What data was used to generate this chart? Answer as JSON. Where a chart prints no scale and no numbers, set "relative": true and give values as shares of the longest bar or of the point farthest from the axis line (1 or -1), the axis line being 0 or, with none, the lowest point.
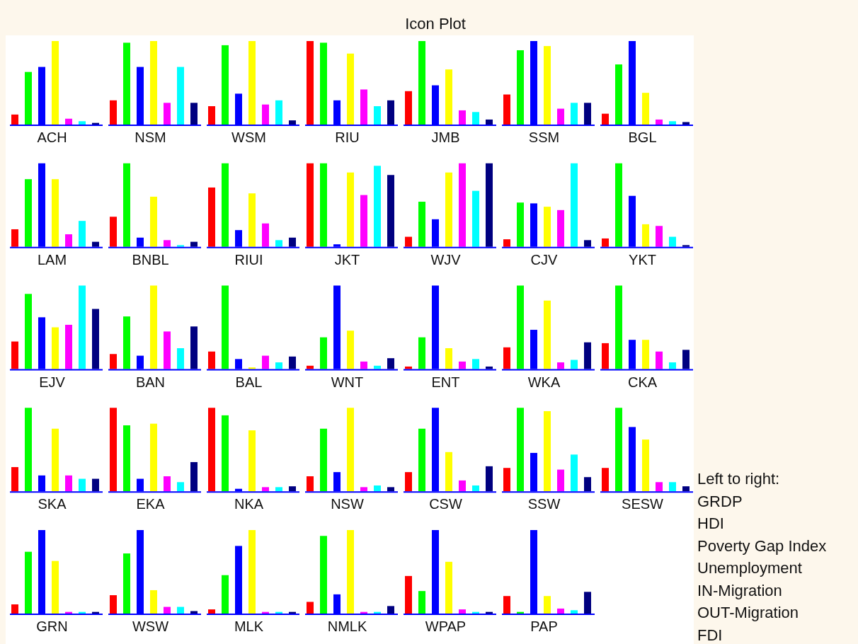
{
  "chart_data": [
    {
      "type": "other",
      "title": "Icon Plot"
    },
    {
      "type": "bar",
      "relative": true,
      "xlabel": "ACH",
      "categories": [
        null,
        null,
        null,
        null,
        null,
        null,
        null
      ],
      "values": [
        0.12,
        0.63,
        0.69,
        1,
        0.07,
        0.04,
        0.02
      ],
      "colors": [
        "#ff0000",
        "#00ff00",
        "#0000ff",
        "#ffff00",
        "#ff00ff",
        "#00ffff",
        "#000080"
      ]
    },
    {
      "type": "bar",
      "relative": true,
      "xlabel": "NSM",
      "categories": [
        null,
        null,
        null,
        null,
        null,
        null,
        null
      ],
      "values": [
        0.29,
        0.98,
        0.69,
        1,
        0.26,
        0.69,
        0.26
      ],
      "colors": [
        "#ff0000",
        "#00ff00",
        "#0000ff",
        "#ffff00",
        "#ff00ff",
        "#00ffff",
        "#000080"
      ]
    },
    {
      "type": "bar",
      "relative": true,
      "xlabel": "WSM",
      "categories": [
        null,
        null,
        null,
        null,
        null,
        null,
        null
      ],
      "values": [
        0.22,
        0.95,
        0.37,
        1,
        0.24,
        0.29,
        0.05
      ],
      "colors": [
        "#ff0000",
        "#00ff00",
        "#0000ff",
        "#ffff00",
        "#ff00ff",
        "#00ffff",
        "#000080"
      ]
    },
    {
      "type": "bar",
      "relative": true,
      "xlabel": "RIU",
      "categories": [
        null,
        null,
        null,
        null,
        null,
        null,
        null
      ],
      "values": [
        1,
        0.98,
        0.29,
        0.85,
        0.42,
        0.22,
        0.29
      ],
      "colors": [
        "#ff0000",
        "#00ff00",
        "#0000ff",
        "#ffff00",
        "#ff00ff",
        "#00ffff",
        "#000080"
      ]
    },
    {
      "type": "bar",
      "relative": true,
      "xlabel": "JMB",
      "categories": [
        null,
        null,
        null,
        null,
        null,
        null,
        null
      ],
      "values": [
        0.4,
        1,
        0.47,
        0.66,
        0.17,
        0.15,
        0.06
      ],
      "colors": [
        "#ff0000",
        "#00ff00",
        "#0000ff",
        "#ffff00",
        "#ff00ff",
        "#00ffff",
        "#000080"
      ]
    },
    {
      "type": "bar",
      "relative": true,
      "xlabel": "SSM",
      "categories": [
        null,
        null,
        null,
        null,
        null,
        null,
        null
      ],
      "values": [
        0.36,
        0.89,
        1,
        0.94,
        0.19,
        0.26,
        0.26
      ],
      "colors": [
        "#ff0000",
        "#00ff00",
        "#0000ff",
        "#ffff00",
        "#ff00ff",
        "#00ffff",
        "#000080"
      ]
    },
    {
      "type": "bar",
      "relative": true,
      "xlabel": "BGL",
      "categories": [
        null,
        null,
        null,
        null,
        null,
        null,
        null
      ],
      "values": [
        0.13,
        0.72,
        1,
        0.38,
        0.06,
        0.04,
        0.03
      ],
      "colors": [
        "#ff0000",
        "#00ff00",
        "#0000ff",
        "#ffff00",
        "#ff00ff",
        "#00ffff",
        "#000080"
      ]
    },
    {
      "type": "bar",
      "relative": true,
      "xlabel": "LAM",
      "categories": [
        null,
        null,
        null,
        null,
        null,
        null,
        null
      ],
      "values": [
        0.21,
        0.81,
        1,
        0.81,
        0.15,
        0.31,
        0.06
      ],
      "colors": [
        "#ff0000",
        "#00ff00",
        "#0000ff",
        "#ffff00",
        "#ff00ff",
        "#00ffff",
        "#000080"
      ]
    },
    {
      "type": "bar",
      "relative": true,
      "xlabel": "BNBL",
      "categories": [
        null,
        null,
        null,
        null,
        null,
        null,
        null
      ],
      "values": [
        0.36,
        1,
        0.11,
        0.6,
        0.08,
        0.02,
        0.06
      ],
      "colors": [
        "#ff0000",
        "#00ff00",
        "#0000ff",
        "#ffff00",
        "#ff00ff",
        "#00ffff",
        "#000080"
      ]
    },
    {
      "type": "bar",
      "relative": true,
      "xlabel": "RIUI",
      "categories": [
        null,
        null,
        null,
        null,
        null,
        null,
        null
      ],
      "values": [
        0.71,
        1,
        0.2,
        0.64,
        0.28,
        0.08,
        0.11
      ],
      "colors": [
        "#ff0000",
        "#00ff00",
        "#0000ff",
        "#ffff00",
        "#ff00ff",
        "#00ffff",
        "#000080"
      ]
    },
    {
      "type": "bar",
      "relative": true,
      "xlabel": "JKT",
      "categories": [
        null,
        null,
        null,
        null,
        null,
        null,
        null
      ],
      "values": [
        1,
        1,
        0.03,
        0.89,
        0.62,
        0.97,
        0.86
      ],
      "colors": [
        "#ff0000",
        "#00ff00",
        "#0000ff",
        "#ffff00",
        "#ff00ff",
        "#00ffff",
        "#000080"
      ]
    },
    {
      "type": "bar",
      "relative": true,
      "xlabel": "WJV",
      "categories": [
        null,
        null,
        null,
        null,
        null,
        null,
        null
      ],
      "values": [
        0.12,
        0.54,
        0.33,
        0.89,
        1,
        0.67,
        1
      ],
      "colors": [
        "#ff0000",
        "#00ff00",
        "#0000ff",
        "#ffff00",
        "#ff00ff",
        "#00ffff",
        "#000080"
      ]
    },
    {
      "type": "bar",
      "relative": true,
      "xlabel": "CJV",
      "categories": [
        null,
        null,
        null,
        null,
        null,
        null,
        null
      ],
      "values": [
        0.09,
        0.53,
        0.52,
        0.48,
        0.44,
        1,
        0.08
      ],
      "colors": [
        "#ff0000",
        "#00ff00",
        "#0000ff",
        "#ffff00",
        "#ff00ff",
        "#00ffff",
        "#000080"
      ]
    },
    {
      "type": "bar",
      "relative": true,
      "xlabel": "YKT",
      "categories": [
        null,
        null,
        null,
        null,
        null,
        null,
        null
      ],
      "values": [
        0.1,
        1,
        0.61,
        0.27,
        0.25,
        0.12,
        0.02
      ],
      "colors": [
        "#ff0000",
        "#00ff00",
        "#0000ff",
        "#ffff00",
        "#ff00ff",
        "#00ffff",
        "#000080"
      ]
    },
    {
      "type": "bar",
      "relative": true,
      "xlabel": "EJV",
      "categories": [
        null,
        null,
        null,
        null,
        null,
        null,
        null
      ],
      "values": [
        0.33,
        0.9,
        0.62,
        0.5,
        0.53,
        1,
        0.72
      ],
      "colors": [
        "#ff0000",
        "#00ff00",
        "#0000ff",
        "#ffff00",
        "#ff00ff",
        "#00ffff",
        "#000080"
      ]
    },
    {
      "type": "bar",
      "relative": true,
      "xlabel": "BAN",
      "categories": [
        null,
        null,
        null,
        null,
        null,
        null,
        null
      ],
      "values": [
        0.18,
        0.63,
        0.16,
        1,
        0.45,
        0.25,
        0.51
      ],
      "colors": [
        "#ff0000",
        "#00ff00",
        "#0000ff",
        "#ffff00",
        "#ff00ff",
        "#00ffff",
        "#000080"
      ]
    },
    {
      "type": "bar",
      "relative": true,
      "xlabel": "BAL",
      "categories": [
        null,
        null,
        null,
        null,
        null,
        null,
        null
      ],
      "values": [
        0.21,
        1,
        0.12,
        0.02,
        0.16,
        0.08,
        0.15
      ],
      "colors": [
        "#ff0000",
        "#00ff00",
        "#0000ff",
        "#ffff00",
        "#ff00ff",
        "#00ffff",
        "#000080"
      ]
    },
    {
      "type": "bar",
      "relative": true,
      "xlabel": "WNT",
      "categories": [
        null,
        null,
        null,
        null,
        null,
        null,
        null
      ],
      "values": [
        0.04,
        0.38,
        1,
        0.46,
        0.09,
        0.04,
        0.13
      ],
      "colors": [
        "#ff0000",
        "#00ff00",
        "#0000ff",
        "#ffff00",
        "#ff00ff",
        "#00ffff",
        "#000080"
      ]
    },
    {
      "type": "bar",
      "relative": true,
      "xlabel": "ENT",
      "categories": [
        null,
        null,
        null,
        null,
        null,
        null,
        null
      ],
      "values": [
        0.03,
        0.38,
        1,
        0.25,
        0.09,
        0.12,
        0.03
      ],
      "colors": [
        "#ff0000",
        "#00ff00",
        "#0000ff",
        "#ffff00",
        "#ff00ff",
        "#00ffff",
        "#000080"
      ]
    },
    {
      "type": "bar",
      "relative": true,
      "xlabel": "WKA",
      "categories": [
        null,
        null,
        null,
        null,
        null,
        null,
        null
      ],
      "values": [
        0.26,
        1,
        0.47,
        0.82,
        0.08,
        0.11,
        0.32
      ],
      "colors": [
        "#ff0000",
        "#00ff00",
        "#0000ff",
        "#ffff00",
        "#ff00ff",
        "#00ffff",
        "#000080"
      ]
    },
    {
      "type": "bar",
      "relative": true,
      "xlabel": "CKA",
      "categories": [
        null,
        null,
        null,
        null,
        null,
        null,
        null
      ],
      "values": [
        0.31,
        1,
        0.35,
        0.35,
        0.21,
        0.08,
        0.23
      ],
      "colors": [
        "#ff0000",
        "#00ff00",
        "#0000ff",
        "#ffff00",
        "#ff00ff",
        "#00ffff",
        "#000080"
      ]
    },
    {
      "type": "bar",
      "relative": true,
      "xlabel": "SKA",
      "categories": [
        null,
        null,
        null,
        null,
        null,
        null,
        null
      ],
      "values": [
        0.29,
        1,
        0.19,
        0.75,
        0.19,
        0.15,
        0.15
      ],
      "colors": [
        "#ff0000",
        "#00ff00",
        "#0000ff",
        "#ffff00",
        "#ff00ff",
        "#00ffff",
        "#000080"
      ]
    },
    {
      "type": "bar",
      "relative": true,
      "xlabel": "EKA",
      "categories": [
        null,
        null,
        null,
        null,
        null,
        null,
        null
      ],
      "values": [
        1,
        0.79,
        0.15,
        0.81,
        0.18,
        0.11,
        0.35
      ],
      "colors": [
        "#ff0000",
        "#00ff00",
        "#0000ff",
        "#ffff00",
        "#ff00ff",
        "#00ffff",
        "#000080"
      ]
    },
    {
      "type": "bar",
      "relative": true,
      "xlabel": "NKA",
      "categories": [
        null,
        null,
        null,
        null,
        null,
        null,
        null
      ],
      "values": [
        1,
        0.91,
        0.03,
        0.73,
        0.05,
        0.05,
        0.06
      ],
      "colors": [
        "#ff0000",
        "#00ff00",
        "#0000ff",
        "#ffff00",
        "#ff00ff",
        "#00ffff",
        "#000080"
      ]
    },
    {
      "type": "bar",
      "relative": true,
      "xlabel": "NSW",
      "categories": [
        null,
        null,
        null,
        null,
        null,
        null,
        null
      ],
      "values": [
        0.18,
        0.75,
        0.23,
        1,
        0.05,
        0.07,
        0.05
      ],
      "colors": [
        "#ff0000",
        "#00ff00",
        "#0000ff",
        "#ffff00",
        "#ff00ff",
        "#00ffff",
        "#000080"
      ]
    },
    {
      "type": "bar",
      "relative": true,
      "xlabel": "CSW",
      "categories": [
        null,
        null,
        null,
        null,
        null,
        null,
        null
      ],
      "values": [
        0.23,
        0.75,
        1,
        0.47,
        0.13,
        0.07,
        0.3
      ],
      "colors": [
        "#ff0000",
        "#00ff00",
        "#0000ff",
        "#ffff00",
        "#ff00ff",
        "#00ffff",
        "#000080"
      ]
    },
    {
      "type": "bar",
      "relative": true,
      "xlabel": "SSW",
      "categories": [
        null,
        null,
        null,
        null,
        null,
        null,
        null
      ],
      "values": [
        0.28,
        1,
        0.46,
        0.96,
        0.26,
        0.44,
        0.17
      ],
      "colors": [
        "#ff0000",
        "#00ff00",
        "#0000ff",
        "#ffff00",
        "#ff00ff",
        "#00ffff",
        "#000080"
      ]
    },
    {
      "type": "bar",
      "relative": true,
      "xlabel": "SESW",
      "categories": [
        null,
        null,
        null,
        null,
        null,
        null,
        null
      ],
      "values": [
        0.28,
        1,
        0.77,
        0.62,
        0.11,
        0.11,
        0.06
      ],
      "colors": [
        "#ff0000",
        "#00ff00",
        "#0000ff",
        "#ffff00",
        "#ff00ff",
        "#00ffff",
        "#000080"
      ]
    },
    {
      "type": "bar",
      "relative": true,
      "xlabel": "GRN",
      "categories": [
        null,
        null,
        null,
        null,
        null,
        null,
        null
      ],
      "values": [
        0.11,
        0.74,
        1,
        0.63,
        0.02,
        0.02,
        0.02
      ],
      "colors": [
        "#ff0000",
        "#00ff00",
        "#0000ff",
        "#ffff00",
        "#ff00ff",
        "#00ffff",
        "#000080"
      ]
    },
    {
      "type": "bar",
      "relative": true,
      "xlabel": "WSW",
      "categories": [
        null,
        null,
        null,
        null,
        null,
        null,
        null
      ],
      "values": [
        0.22,
        0.72,
        1,
        0.28,
        0.08,
        0.08,
        0.03
      ],
      "colors": [
        "#ff0000",
        "#00ff00",
        "#0000ff",
        "#ffff00",
        "#ff00ff",
        "#00ffff",
        "#000080"
      ]
    },
    {
      "type": "bar",
      "relative": true,
      "xlabel": "MLK",
      "categories": [
        null,
        null,
        null,
        null,
        null,
        null,
        null
      ],
      "values": [
        0.05,
        0.46,
        0.81,
        1,
        0.02,
        0.02,
        0.02
      ],
      "colors": [
        "#ff0000",
        "#00ff00",
        "#0000ff",
        "#ffff00",
        "#ff00ff",
        "#00ffff",
        "#000080"
      ]
    },
    {
      "type": "bar",
      "relative": true,
      "xlabel": "NMLK",
      "categories": [
        null,
        null,
        null,
        null,
        null,
        null,
        null
      ],
      "values": [
        0.14,
        0.93,
        0.23,
        1,
        0.02,
        0.02,
        0.09
      ],
      "colors": [
        "#ff0000",
        "#00ff00",
        "#0000ff",
        "#ffff00",
        "#ff00ff",
        "#00ffff",
        "#000080"
      ]
    },
    {
      "type": "bar",
      "relative": true,
      "xlabel": "WPAP",
      "categories": [
        null,
        null,
        null,
        null,
        null,
        null,
        null
      ],
      "values": [
        0.45,
        0.27,
        1,
        0.62,
        0.05,
        0.02,
        0.02
      ],
      "colors": [
        "#ff0000",
        "#00ff00",
        "#0000ff",
        "#ffff00",
        "#ff00ff",
        "#00ffff",
        "#000080"
      ]
    },
    {
      "type": "bar",
      "relative": true,
      "xlabel": "PAP",
      "categories": [
        null,
        null,
        null,
        null,
        null,
        null,
        null
      ],
      "values": [
        0.21,
        0.02,
        1,
        0.21,
        0.06,
        0.04,
        0.26
      ],
      "colors": [
        "#ff0000",
        "#00ff00",
        "#0000ff",
        "#ffff00",
        "#ff00ff",
        "#00ffff",
        "#000080"
      ]
    },
    {
      "type": "other",
      "annotations": [
        "Left to right:",
        "GRDP",
        "HDI",
        "Poverty Gap Index",
        "Unemployment",
        "IN-Migration",
        "OUT-Migration",
        "FDI"
      ]
    }
  ]
}
